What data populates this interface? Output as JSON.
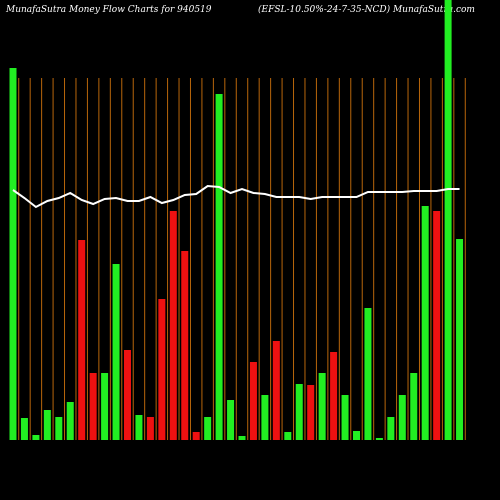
{
  "chart_data": {
    "type": "bar",
    "title": "MunafaSutra  Money Flow  Charts for 940519",
    "subtitle": "(EFSL-10.50%-24-7-35-NCD) MunafaSutra.com",
    "categories": [
      null,
      null,
      null,
      null,
      null,
      null,
      null,
      null,
      null,
      null,
      null,
      null,
      null,
      null,
      null,
      null,
      null,
      null,
      null,
      null,
      null,
      null,
      null,
      null,
      null,
      null,
      null,
      null,
      null,
      null,
      null,
      null,
      null,
      null,
      null,
      null,
      null,
      null,
      null,
      null
    ],
    "values": [
      372,
      22,
      5,
      30,
      23,
      38,
      200,
      67,
      67,
      176,
      90,
      25,
      23,
      141,
      229,
      189,
      8,
      23,
      346,
      40,
      4,
      78,
      45,
      99,
      8,
      56,
      55,
      67,
      88,
      45,
      9,
      132,
      2,
      23,
      45,
      67,
      234,
      229,
      440,
      201
    ],
    "colors": [
      "#22ee22",
      "#22ee22",
      "#22ee22",
      "#22ee22",
      "#22ee22",
      "#22ee22",
      "#ee1111",
      "#ee1111",
      "#22ee22",
      "#22ee22",
      "#ee1111",
      "#22ee22",
      "#ee1111",
      "#ee1111",
      "#ee1111",
      "#ee1111",
      "#ee1111",
      "#22ee22",
      "#22ee22",
      "#22ee22",
      "#22ee22",
      "#ee1111",
      "#22ee22",
      "#ee1111",
      "#22ee22",
      "#22ee22",
      "#ee1111",
      "#22ee22",
      "#ee1111",
      "#22ee22",
      "#22ee22",
      "#22ee22",
      "#22ee22",
      "#22ee22",
      "#22ee22",
      "#22ee22",
      "#22ee22",
      "#ee1111",
      "#22ee22",
      "#22ee22"
    ],
    "line": {
      "color": "#ffffff",
      "values": [
        250,
        242,
        233,
        239,
        242,
        247,
        240,
        236,
        241,
        242,
        239,
        239,
        243,
        237,
        240,
        245,
        246,
        254,
        253,
        247,
        251,
        247,
        246,
        243,
        243,
        243,
        241,
        243,
        243,
        243,
        243,
        248,
        248,
        248,
        248,
        249,
        249,
        249,
        251,
        251
      ]
    },
    "ylim": [
      0,
      440
    ]
  }
}
